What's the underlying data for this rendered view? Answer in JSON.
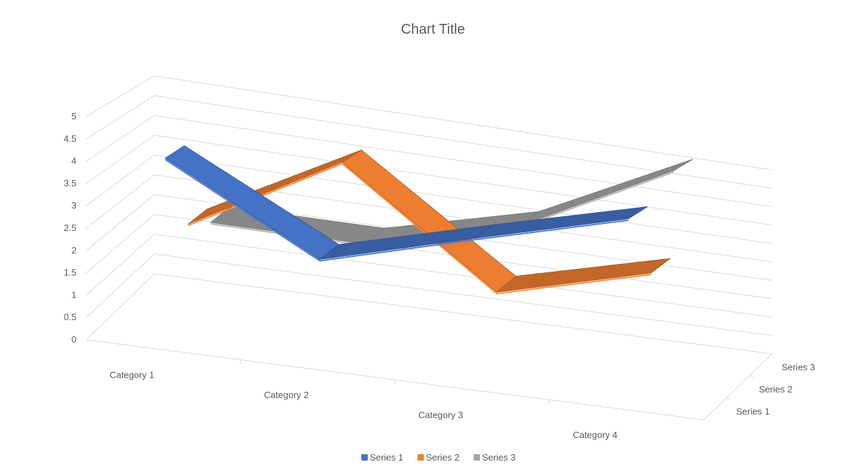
{
  "chart_data": {
    "type": "line",
    "title": "Chart Title",
    "categories": [
      "Category 1",
      "Category 2",
      "Category 3",
      "Category 4"
    ],
    "depth_labels": [
      "Series 1",
      "Series 2",
      "Series 3"
    ],
    "series": [
      {
        "name": "Series 1",
        "values": [
          4.3,
          2.5,
          3.5,
          4.5
        ],
        "color": "#4472C4"
      },
      {
        "name": "Series 2",
        "values": [
          2.4,
          4.4,
          1.8,
          2.8
        ],
        "color": "#ED7D31"
      },
      {
        "name": "Series 3",
        "values": [
          2.0,
          2.0,
          3.0,
          5.0
        ],
        "color": "#A5A5A5"
      }
    ],
    "ylim": [
      0,
      5
    ],
    "y_ticks": [
      "0",
      "0.5",
      "1",
      "1.5",
      "2",
      "2.5",
      "3",
      "3.5",
      "4",
      "4.5",
      "5"
    ],
    "grid": true,
    "legend_position": "bottom",
    "view": "3d"
  }
}
